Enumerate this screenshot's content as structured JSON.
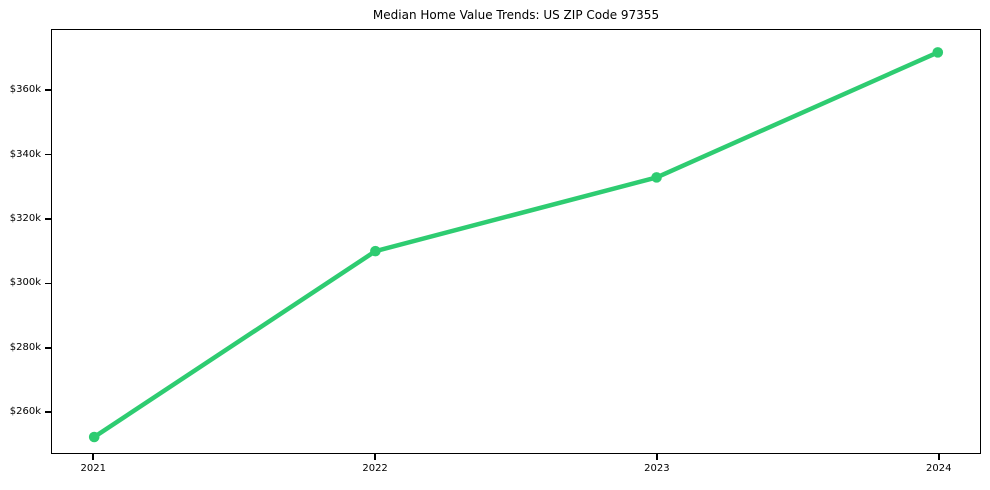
{
  "chart_data": {
    "type": "line",
    "title": "Median Home Value Trends: US ZIP Code 97355",
    "xlabel": "",
    "ylabel": "",
    "x": [
      2021,
      2022,
      2023,
      2024
    ],
    "series": [
      {
        "name": "Median Home Value",
        "values": [
          252000,
          310000,
          333000,
          372000
        ],
        "color": "#2ecc71",
        "marker": "circle",
        "line_width": 4.5,
        "marker_radius": 5.3
      }
    ],
    "x_ticks": [
      {
        "value": 2021,
        "label": "2021"
      },
      {
        "value": 2022,
        "label": "2022"
      },
      {
        "value": 2023,
        "label": "2023"
      },
      {
        "value": 2024,
        "label": "2024"
      }
    ],
    "y_ticks": [
      {
        "value": 260000,
        "label": "$260k"
      },
      {
        "value": 280000,
        "label": "$280k"
      },
      {
        "value": 300000,
        "label": "$300k"
      },
      {
        "value": 320000,
        "label": "$320k"
      },
      {
        "value": 340000,
        "label": "$340k"
      },
      {
        "value": 360000,
        "label": "$360k"
      }
    ],
    "xlim": [
      2020.85,
      2024.15
    ],
    "ylim": [
      247000,
      379000
    ],
    "grid": false,
    "legend": "none",
    "background_color": "#ffffff",
    "spine_color": "#000000",
    "text_color": "#000000"
  }
}
